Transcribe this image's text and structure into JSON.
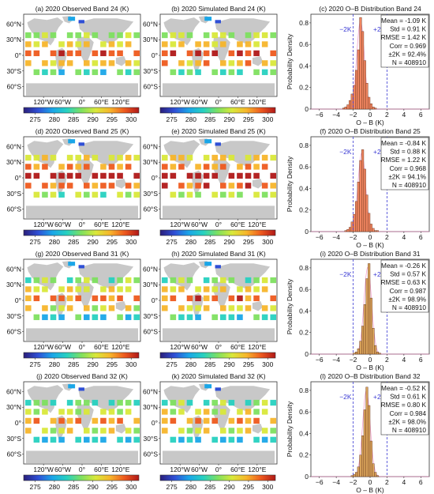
{
  "figure": {
    "colors": {
      "obs_bar": "#f08560",
      "sim_bar": "#d8a25a",
      "dashed_line": "#3b3bd4",
      "land": "#c8c8c8",
      "ocean": "#ffffff",
      "pink_curve": "#f07ab8"
    },
    "map_axes": {
      "lat_ticks": [
        "60°N",
        "30°N",
        "0°",
        "30°S",
        "60°S"
      ],
      "lon_ticks": [
        "120°W",
        "60°W",
        "0°",
        "60°E",
        "120°E"
      ]
    },
    "colorbar": {
      "ticks": [
        "275",
        "280",
        "285",
        "290",
        "295",
        "300"
      ],
      "range": [
        272,
        302
      ],
      "colors": [
        "#2a1e7a",
        "#2f4fd6",
        "#1aa6e8",
        "#27d1c0",
        "#7ee060",
        "#d9e83a",
        "#f7b52b",
        "#ee5a1e",
        "#b01818"
      ]
    },
    "hist_axes": {
      "xlabel": "O – B (K)",
      "ylabel": "Probability Density",
      "xticks": [
        "−6",
        "−4",
        "−2",
        "0",
        "2",
        "4",
        "6"
      ],
      "yticks": [
        "0",
        "0.2",
        "0.4",
        "0.6",
        "0.8"
      ],
      "xlim": [
        -7,
        7
      ],
      "ylim": [
        0,
        0.88
      ],
      "line_left": "−2K",
      "line_right": "+2K"
    },
    "rows": [
      {
        "obs_title": "(a) 2020 Observed Band 24 (K)",
        "sim_title": "(b) 2020 Simulated Band 24 (K)",
        "hist_title": "(c) 2020 O–B Distribution Band 24",
        "stats": [
          "Mean = -1.09 K",
          "Std = 0.91 K",
          "RMSE = 1.42 K",
          "Corr = 0.969",
          "±2K = 92.4%",
          "N = 408910"
        ]
      },
      {
        "obs_title": "(d) 2020 Observed Band 25 (K)",
        "sim_title": "(e) 2020 Simulated Band 25 (K)",
        "hist_title": "(f) 2020 O–B Distribution Band 25",
        "stats": [
          "Mean = -0.84 K",
          "Std = 0.88 K",
          "RMSE = 1.22 K",
          "Corr = 0.968",
          "±2K = 94.1%",
          "N = 408910"
        ]
      },
      {
        "obs_title": "(g) 2020 Observed Band 31 (K)",
        "sim_title": "(h) 2020 Simulated Band 31 (K)",
        "hist_title": "(i) 2020 O–B Distribution Band 31",
        "stats": [
          "Mean = -0.26 K",
          "Std = 0.57 K",
          "RMSE = 0.63 K",
          "Corr = 0.987",
          "±2K = 98.9%",
          "N = 408910"
        ]
      },
      {
        "obs_title": "(j) 2020 Observed Band 32 (K)",
        "sim_title": "(k) 2020 Simulated Band 32 (K)",
        "hist_title": "(l) 2020 O–B Distribution Band 32",
        "stats": [
          "Mean = -0.52 K",
          "Std = 0.61 K",
          "RMSE = 0.80 K",
          "Corr = 0.984",
          "±2K = 98.0%",
          "N = 408910"
        ]
      }
    ]
  },
  "chart_data": [
    {
      "type": "bar",
      "panel": "c",
      "title": "(c) 2020 O–B Distribution Band 24",
      "xlabel": "O – B (K)",
      "ylabel": "Probability Density",
      "xlim": [
        -7,
        7
      ],
      "ylim": [
        0,
        0.88
      ],
      "bin_width": 0.25,
      "vlines": [
        -2,
        2
      ],
      "x": [
        -3.125,
        -2.875,
        -2.625,
        -2.375,
        -2.125,
        -1.875,
        -1.625,
        -1.375,
        -1.125,
        -0.875,
        -0.625,
        -0.375,
        -0.125,
        0.125,
        0.375,
        0.625
      ],
      "values": [
        0.01,
        0.02,
        0.04,
        0.08,
        0.14,
        0.22,
        0.36,
        0.55,
        0.85,
        0.72,
        0.45,
        0.24,
        0.11,
        0.05,
        0.02,
        0.01
      ]
    },
    {
      "type": "bar",
      "panel": "f",
      "title": "(f) 2020 O–B Distribution Band 25",
      "xlabel": "O – B (K)",
      "ylabel": "Probability Density",
      "xlim": [
        -7,
        7
      ],
      "ylim": [
        0,
        0.88
      ],
      "bin_width": 0.25,
      "vlines": [
        -2,
        2
      ],
      "x": [
        -2.875,
        -2.625,
        -2.375,
        -2.125,
        -1.875,
        -1.625,
        -1.375,
        -1.125,
        -0.875,
        -0.625,
        -0.375,
        -0.125,
        0.125,
        0.375,
        0.625,
        0.875
      ],
      "values": [
        0.01,
        0.02,
        0.04,
        0.09,
        0.16,
        0.28,
        0.46,
        0.66,
        0.76,
        0.58,
        0.34,
        0.17,
        0.07,
        0.03,
        0.01,
        0.01
      ]
    },
    {
      "type": "bar",
      "panel": "i",
      "title": "(i) 2020 O–B Distribution Band 31",
      "xlabel": "O – B (K)",
      "ylabel": "Probability Density",
      "xlim": [
        -7,
        7
      ],
      "ylim": [
        0,
        0.88
      ],
      "bin_width": 0.25,
      "vlines": [
        -2,
        2
      ],
      "x": [
        -1.875,
        -1.625,
        -1.375,
        -1.125,
        -0.875,
        -0.625,
        -0.375,
        -0.125,
        0.125,
        0.375,
        0.625,
        0.875,
        1.125
      ],
      "values": [
        0.01,
        0.02,
        0.05,
        0.12,
        0.26,
        0.46,
        0.7,
        0.84,
        0.52,
        0.24,
        0.08,
        0.02,
        0.01
      ]
    },
    {
      "type": "bar",
      "panel": "l",
      "title": "(l) 2020 O–B Distribution Band 32",
      "xlabel": "O – B (K)",
      "ylabel": "Probability Density",
      "xlim": [
        -7,
        7
      ],
      "ylim": [
        0,
        0.88
      ],
      "bin_width": 0.25,
      "vlines": [
        -2,
        2
      ],
      "x": [
        -2.125,
        -1.875,
        -1.625,
        -1.375,
        -1.125,
        -0.875,
        -0.625,
        -0.375,
        -0.125,
        0.125,
        0.375,
        0.625,
        0.875
      ],
      "values": [
        0.01,
        0.02,
        0.04,
        0.09,
        0.2,
        0.38,
        0.62,
        0.83,
        0.66,
        0.33,
        0.12,
        0.04,
        0.01
      ]
    }
  ]
}
